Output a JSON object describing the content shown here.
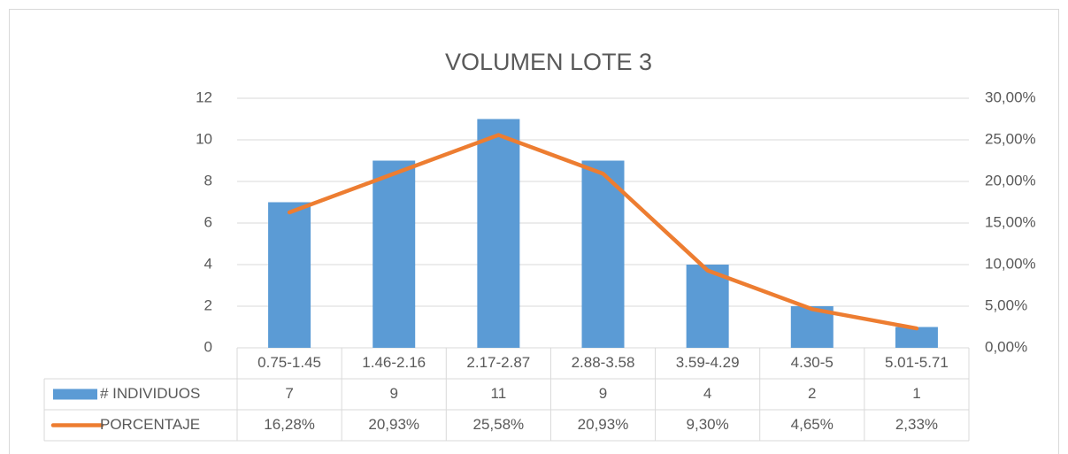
{
  "chart_data": {
    "type": "bar",
    "title": "VOLUMEN LOTE 3",
    "categories": [
      "0.75-1.45",
      "1.46-2.16",
      "2.17-2.87",
      "2.88-3.58",
      "3.59-4.29",
      "4.30-5",
      "5.01-5.71"
    ],
    "series": [
      {
        "name": "# INDIVIDUOS",
        "type": "bar",
        "color": "#5b9bd5",
        "values": [
          7,
          9,
          11,
          9,
          4,
          2,
          1
        ]
      },
      {
        "name": "PORCENTAJE",
        "type": "line",
        "axis": "y2",
        "color": "#ed7d31",
        "values": [
          16.28,
          20.93,
          25.58,
          20.93,
          9.3,
          4.65,
          2.33
        ],
        "value_labels": [
          "16,28%",
          "20,93%",
          "25,58%",
          "20,93%",
          "9,30%",
          "4,65%",
          "2,33%"
        ]
      }
    ],
    "ylim": [
      0,
      12
    ],
    "yticks": [
      0,
      2,
      4,
      6,
      8,
      10,
      12
    ],
    "y2lim": [
      0,
      30
    ],
    "y2ticks": [
      {
        "value": 0,
        "label": "0,00%"
      },
      {
        "value": 5,
        "label": "5,00%"
      },
      {
        "value": 10,
        "label": "10,00%"
      },
      {
        "value": 15,
        "label": "15,00%"
      },
      {
        "value": 20,
        "label": "20,00%"
      },
      {
        "value": 25,
        "label": "25,00%"
      },
      {
        "value": 30,
        "label": "30,00%"
      }
    ],
    "grid": true,
    "data_table": true
  }
}
